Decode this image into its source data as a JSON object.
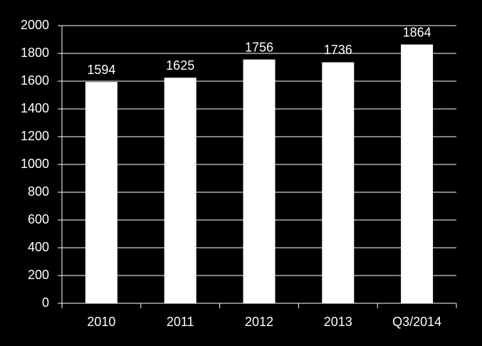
{
  "chart_data": {
    "type": "bar",
    "categories": [
      "2010",
      "2011",
      "2012",
      "2013",
      "Q3/2014"
    ],
    "values": [
      1594,
      1625,
      1756,
      1736,
      1864
    ],
    "color": "#ffffff",
    "ylim": [
      0,
      2000
    ],
    "yticks": [
      0,
      200,
      400,
      600,
      800,
      1000,
      1200,
      1400,
      1600,
      1800,
      2000
    ],
    "grid": true,
    "data_labels": true
  }
}
